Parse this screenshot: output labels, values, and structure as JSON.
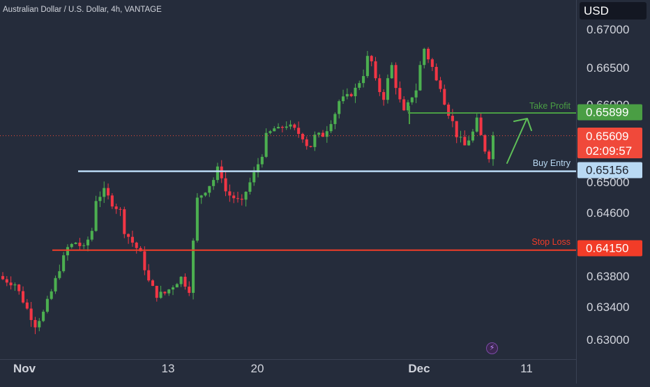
{
  "header": {
    "title": "Australian Dollar / U.S. Dollar, 4h, VANTAGE",
    "currency_button": "USD"
  },
  "colors": {
    "background": "#252c3b",
    "up_candle": "#4caf50",
    "down_candle": "#f23645",
    "take_profit": "#4a9e44",
    "buy_entry": "#b9d9f3",
    "stop_loss": "#f23c28",
    "current_price": "#f0493a"
  },
  "chart_data": {
    "type": "candlestick",
    "title": "Australian Dollar / U.S. Dollar, 4h, VANTAGE",
    "x_tick_labels": [
      "Nov",
      "13",
      "20",
      "Dec",
      "11"
    ],
    "y_tick_labels": [
      "0.67000",
      "0.66500",
      "0.66000",
      "0.65000",
      "0.64600",
      "0.63800",
      "0.63400",
      "0.63000"
    ],
    "ylim": [
      0.6295,
      0.6705
    ],
    "grid": false,
    "levels": [
      {
        "name": "Take Profit",
        "value": 0.65899,
        "label": "0.65899"
      },
      {
        "name": "Buy Entry",
        "value": 0.65156,
        "label": "0.65156"
      },
      {
        "name": "Stop Loss",
        "value": 0.6415,
        "label": "0.64150"
      }
    ],
    "current_price": {
      "value": 0.65609,
      "label": "0.65609",
      "countdown": "02:09:57"
    },
    "close_path": [
      [
        0,
        0.6378
      ],
      [
        3,
        0.6372
      ],
      [
        6,
        0.634
      ],
      [
        8,
        0.632
      ],
      [
        10,
        0.6335
      ],
      [
        12,
        0.6362
      ],
      [
        14,
        0.6392
      ],
      [
        16,
        0.6418
      ],
      [
        18,
        0.6425
      ],
      [
        20,
        0.6417
      ],
      [
        22,
        0.644
      ],
      [
        23,
        0.648
      ],
      [
        25,
        0.649
      ],
      [
        27,
        0.6475
      ],
      [
        29,
        0.6465
      ],
      [
        30,
        0.644
      ],
      [
        32,
        0.6425
      ],
      [
        33,
        0.6418
      ],
      [
        34,
        0.641
      ],
      [
        36,
        0.6375
      ],
      [
        38,
        0.6358
      ],
      [
        40,
        0.636
      ],
      [
        42,
        0.637
      ],
      [
        44,
        0.638
      ],
      [
        45,
        0.6372
      ],
      [
        46,
        0.6365
      ],
      [
        47,
        0.6425
      ],
      [
        48,
        0.648
      ],
      [
        50,
        0.6492
      ],
      [
        52,
        0.6505
      ],
      [
        53,
        0.6518
      ],
      [
        54,
        0.651
      ],
      [
        55,
        0.649
      ],
      [
        56,
        0.6485
      ],
      [
        57,
        0.6482
      ],
      [
        58,
        0.6478
      ],
      [
        59,
        0.6475
      ],
      [
        60,
        0.649
      ],
      [
        62,
        0.6512
      ],
      [
        64,
        0.6538
      ],
      [
        65,
        0.656
      ],
      [
        67,
        0.657
      ],
      [
        68,
        0.6568
      ],
      [
        69,
        0.6572
      ],
      [
        70,
        0.6575
      ],
      [
        72,
        0.6568
      ],
      [
        74,
        0.656
      ],
      [
        75,
        0.655
      ],
      [
        76,
        0.6548
      ],
      [
        77,
        0.656
      ],
      [
        79,
        0.6562
      ],
      [
        80,
        0.657
      ],
      [
        82,
        0.659
      ],
      [
        83,
        0.6605
      ],
      [
        85,
        0.661
      ],
      [
        87,
        0.662
      ],
      [
        88,
        0.663
      ],
      [
        89,
        0.664
      ],
      [
        90,
        0.666
      ],
      [
        91,
        0.6655
      ],
      [
        92,
        0.663
      ],
      [
        93,
        0.6618
      ],
      [
        94,
        0.661
      ],
      [
        95,
        0.6632
      ],
      [
        96,
        0.665
      ],
      [
        97,
        0.6625
      ],
      [
        98,
        0.6605
      ],
      [
        99,
        0.659
      ],
      [
        100,
        0.66
      ],
      [
        101,
        0.6612
      ],
      [
        102,
        0.662
      ],
      [
        103,
        0.665
      ],
      [
        104,
        0.6672
      ],
      [
        105,
        0.666
      ],
      [
        106,
        0.6648
      ],
      [
        107,
        0.663
      ],
      [
        108,
        0.6625
      ],
      [
        109,
        0.6605
      ],
      [
        110,
        0.659
      ],
      [
        111,
        0.6578
      ],
      [
        112,
        0.6562
      ],
      [
        113,
        0.6555
      ],
      [
        114,
        0.6548
      ],
      [
        116,
        0.6565
      ],
      [
        117,
        0.658
      ],
      [
        118,
        0.656
      ],
      [
        119,
        0.6543
      ],
      [
        120,
        0.6535
      ],
      [
        121,
        0.6561
      ]
    ]
  },
  "annotations": {
    "take_profit_label": "Take Profit",
    "buy_entry_label": "Buy Entry",
    "stop_loss_label": "Stop Loss"
  }
}
